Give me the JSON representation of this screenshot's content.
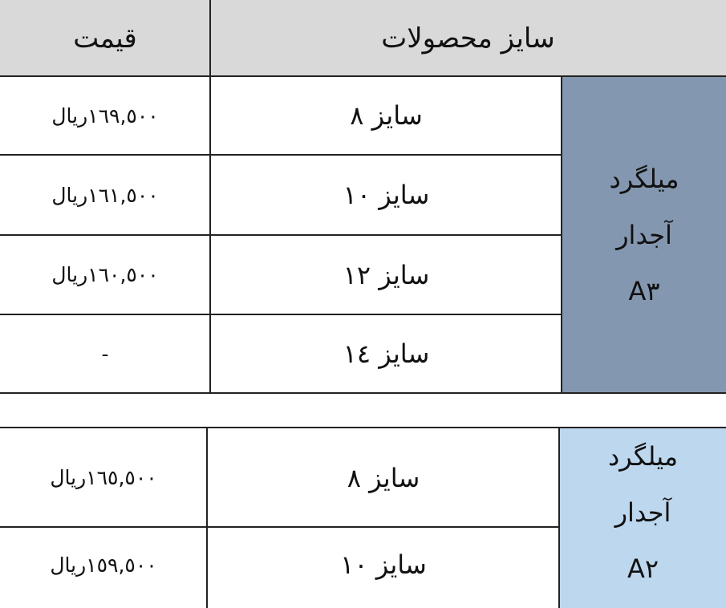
{
  "header": {
    "price": "قیمت",
    "sizes": "سایز محصولات"
  },
  "tables": [
    {
      "group": {
        "line1": "میلگرد",
        "line2": "آجدار",
        "line3": "A٣",
        "color": "#8497b0"
      },
      "rows": [
        {
          "size": "سایز ٨",
          "price": "١٦٩,٥٠٠ریال"
        },
        {
          "size": "سایز ١٠",
          "price": "١٦١,٥٠٠ریال"
        },
        {
          "size": "سایز ١٢",
          "price": "١٦٠,٥٠٠ریال"
        },
        {
          "size": "سایز ١٤",
          "price": "-"
        }
      ]
    },
    {
      "group": {
        "line1": "میلگرد",
        "line2": "آجدار",
        "line3": "A٢",
        "color": "#bdd7ee"
      },
      "rows": [
        {
          "size": "سایز ٨",
          "price": "١٦٥,٥٠٠ریال"
        },
        {
          "size": "سایز ١٠",
          "price": "١٥٩,٥٠٠ریال"
        }
      ]
    }
  ]
}
